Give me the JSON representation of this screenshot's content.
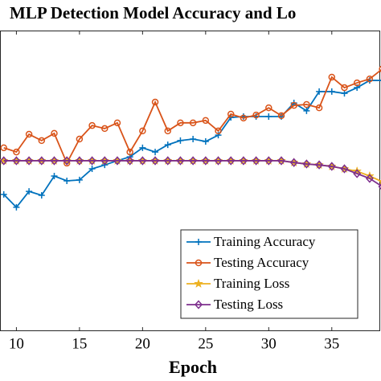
{
  "chart_data": {
    "type": "line",
    "title": "MLP Detection Model Accuracy and Lo",
    "x_label": "Epoch",
    "x": [
      9,
      10,
      11,
      12,
      13,
      14,
      15,
      16,
      17,
      18,
      19,
      20,
      21,
      22,
      23,
      24,
      25,
      26,
      27,
      28,
      29,
      30,
      31,
      32,
      33,
      34,
      35,
      36,
      37,
      38,
      39
    ],
    "xlim": [
      8.7,
      38.9
    ],
    "xticks": [
      10,
      15,
      20,
      25,
      30,
      35
    ],
    "ylim": [
      0,
      100
    ],
    "legend": "lower right",
    "series": [
      {
        "name": "Training Accuracy",
        "color": "#0072BD",
        "marker": "plus",
        "values": [
          45.5,
          41.2,
          46.5,
          45.2,
          51.6,
          50.0,
          50.3,
          54.0,
          55.3,
          56.7,
          58.0,
          61.0,
          59.6,
          62.0,
          63.4,
          63.9,
          63.1,
          65.2,
          71.1,
          71.4,
          71.4,
          71.4,
          71.4,
          75.9,
          73.3,
          79.7,
          79.7,
          79.1,
          81.0,
          83.4,
          83.4
        ]
      },
      {
        "name": "Testing Accuracy",
        "color": "#D95319",
        "marker": "circle",
        "values": [
          61.0,
          59.6,
          65.5,
          63.4,
          65.8,
          55.9,
          63.9,
          68.4,
          67.4,
          69.3,
          59.6,
          66.6,
          76.2,
          66.6,
          69.3,
          69.3,
          70.1,
          66.6,
          72.2,
          70.9,
          71.9,
          74.3,
          71.7,
          75.1,
          75.4,
          74.3,
          84.5,
          81.0,
          82.6,
          83.9,
          87.2
        ]
      },
      {
        "name": "Training Loss",
        "color": "#EDB120",
        "marker": "star",
        "values": [
          56.7,
          56.7,
          56.7,
          56.7,
          56.7,
          56.7,
          56.7,
          56.7,
          56.7,
          56.7,
          56.7,
          56.7,
          56.7,
          56.7,
          56.7,
          56.7,
          56.7,
          56.7,
          56.7,
          56.7,
          56.7,
          56.7,
          56.7,
          56.1,
          55.6,
          55.3,
          54.8,
          54.0,
          53.2,
          51.6,
          49.7
        ]
      },
      {
        "name": "Testing Loss",
        "color": "#7E2F8E",
        "marker": "diamond",
        "values": [
          56.7,
          56.7,
          56.7,
          56.7,
          56.7,
          56.7,
          56.7,
          56.7,
          56.7,
          56.7,
          56.7,
          56.7,
          56.7,
          56.7,
          56.7,
          56.7,
          56.7,
          56.7,
          56.7,
          56.7,
          56.7,
          56.7,
          56.7,
          56.1,
          55.6,
          55.3,
          54.8,
          54.0,
          52.4,
          50.8,
          48.1
        ]
      }
    ]
  }
}
